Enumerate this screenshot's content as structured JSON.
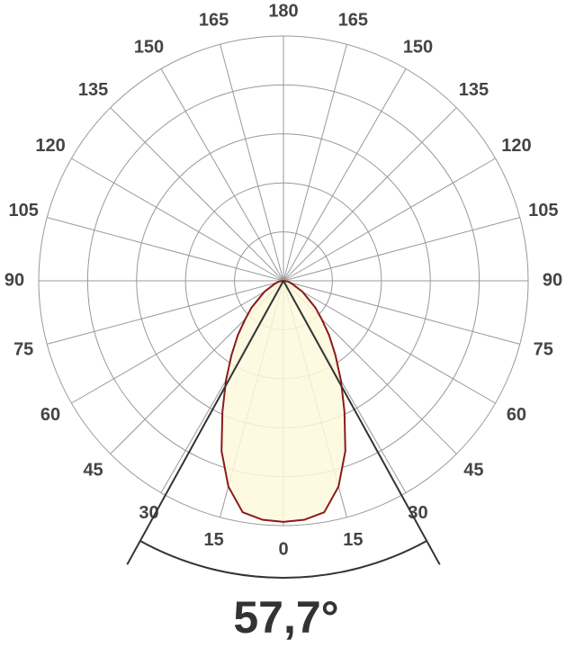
{
  "chart_data": {
    "type": "polar",
    "angles": [
      -90,
      -80,
      -70,
      -60,
      -50,
      -45,
      -40,
      -35,
      -30,
      -25,
      -20,
      -15,
      -10,
      -5,
      0,
      5,
      10,
      15,
      20,
      25,
      30,
      35,
      40,
      45,
      50,
      60,
      70,
      80,
      90
    ],
    "values": [
      0,
      0.02,
      0.04,
      0.09,
      0.17,
      0.22,
      0.29,
      0.37,
      0.47,
      0.59,
      0.74,
      0.87,
      0.96,
      0.98,
      0.985,
      0.98,
      0.96,
      0.87,
      0.74,
      0.59,
      0.47,
      0.37,
      0.29,
      0.22,
      0.17,
      0.09,
      0.04,
      0.02,
      0
    ],
    "color": "#8b1a1a",
    "fill": "#fdf9dc",
    "rlim": [
      0,
      1
    ],
    "rticks": [
      0.2,
      0.4,
      0.6,
      0.8,
      1
    ],
    "angle_ticks": [
      0,
      15,
      30,
      45,
      60,
      75,
      90,
      105,
      120,
      135,
      150,
      165,
      180
    ],
    "beam_angle": 57.7,
    "beam_label": "57,7°"
  }
}
